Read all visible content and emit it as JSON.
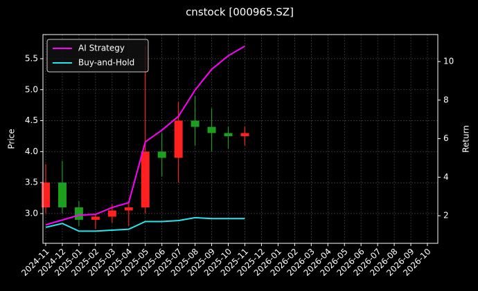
{
  "chart_data": {
    "type": "candlestick",
    "title": "cnstock [000965.SZ]",
    "ylabel": "Price",
    "y2label": "Return",
    "x": [
      "2024-11",
      "2024-12",
      "2025-01",
      "2025-02",
      "2025-03",
      "2025-04",
      "2025-05",
      "2025-06",
      "2025-07",
      "2025-08",
      "2025-09",
      "2025-10",
      "2025-11"
    ],
    "open": [
      3.1,
      3.5,
      3.1,
      2.9,
      2.95,
      3.05,
      3.1,
      4.0,
      3.9,
      4.5,
      4.4,
      4.3,
      4.25
    ],
    "high": [
      3.8,
      3.85,
      3.2,
      3.0,
      3.15,
      3.2,
      5.7,
      4.3,
      4.8,
      4.9,
      4.7,
      4.4,
      4.4
    ],
    "low": [
      3.0,
      3.0,
      2.8,
      2.75,
      2.85,
      2.8,
      3.0,
      3.6,
      3.5,
      4.1,
      4.0,
      4.05,
      4.1
    ],
    "close": [
      3.5,
      3.1,
      2.9,
      2.95,
      3.05,
      3.1,
      4.0,
      3.9,
      4.5,
      4.4,
      4.3,
      4.25,
      4.3
    ],
    "up_color": "#ff2020",
    "down_color": "#1e9e1e",
    "series": [
      {
        "name": "AI Strategy",
        "color": "#ff00ff",
        "axis": "y2",
        "values": [
          1.53,
          1.78,
          2.03,
          2.07,
          2.43,
          2.68,
          5.83,
          6.44,
          7.16,
          8.52,
          9.6,
          10.3,
          10.8
        ]
      },
      {
        "name": "Buy-and-Hold",
        "color": "#22e8f0",
        "axis": "y2",
        "values": [
          1.4,
          1.6,
          1.2,
          1.2,
          1.25,
          1.3,
          1.7,
          1.7,
          1.75,
          1.9,
          1.85,
          1.85,
          1.85
        ]
      }
    ],
    "xlim": [
      "2024-11",
      "2026-10"
    ],
    "xticks": [
      "2024-11",
      "2024-12",
      "2025-01",
      "2025-02",
      "2025-03",
      "2025-04",
      "2025-05",
      "2025-06",
      "2025-07",
      "2025-08",
      "2025-09",
      "2025-10",
      "2025-11",
      "2025-12",
      "2026-01",
      "2026-02",
      "2026-03",
      "2026-04",
      "2026-05",
      "2026-06",
      "2026-07",
      "2026-08",
      "2026-09",
      "2026-10"
    ],
    "ylim": [
      2.52,
      5.89
    ],
    "yticks": [
      {
        "value": 3,
        "label": "3.0"
      },
      3.5,
      {
        "value": 4,
        "label": "4.0"
      },
      4.5,
      {
        "value": 5,
        "label": "5.0"
      },
      5.5
    ],
    "y2lim": [
      0.57,
      11.4
    ],
    "y2ticks": [
      2,
      4,
      6,
      8,
      10
    ],
    "grid": true,
    "legend": "upper left"
  }
}
